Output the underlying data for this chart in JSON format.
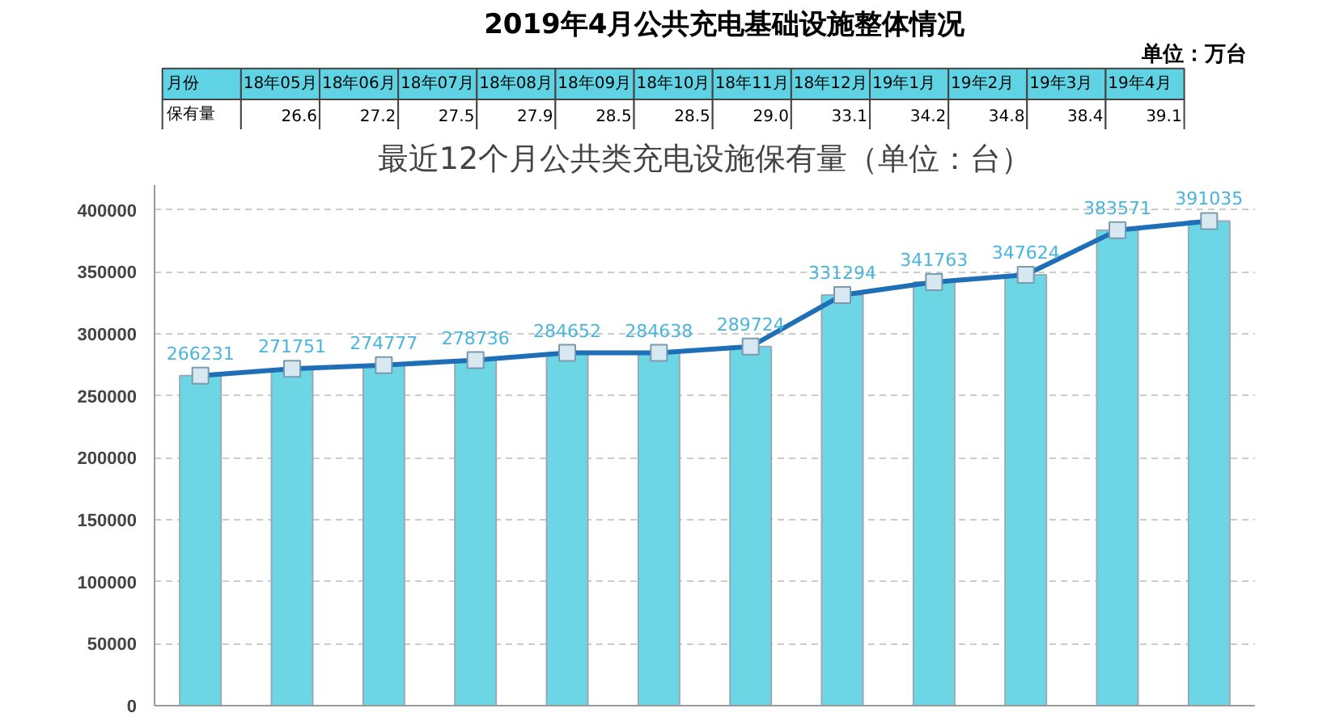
{
  "chart_data": [
    {
      "type": "other",
      "title": "2019年4月公共充电基础设施整体情况",
      "annotations": [
        "单位：万台"
      ],
      "y_categories": [
        "月份",
        "保有量"
      ],
      "categories": [
        "18年05月",
        "18年06月",
        "18年07月",
        "18年08月",
        "18年09月",
        "18年10月",
        "18年11月",
        "18年12月",
        "19年1月",
        "19年2月",
        "19年3月",
        "19年4月"
      ],
      "value_labels": [
        "26.6",
        "27.2",
        "27.5",
        "27.9",
        "28.5",
        "28.5",
        "29.0",
        "33.1",
        "34.2",
        "34.8",
        "38.4",
        "39.1"
      ]
    },
    {
      "type": "bar",
      "title": "最近12个月公共类充电设施保有量（单位：台）",
      "categories": [
        null,
        null,
        null,
        null,
        null,
        null,
        null,
        null,
        null,
        null,
        null,
        null
      ],
      "series": [
        {
          "type": "bar",
          "color": "#6dd6e4",
          "values": [
            266231,
            271751,
            274777,
            278736,
            284652,
            284638,
            289724,
            331294,
            341763,
            347624,
            383571,
            391035
          ]
        },
        {
          "type": "line",
          "color": "#1f6fb8",
          "values": [
            266231,
            271751,
            274777,
            278736,
            284652,
            284638,
            289724,
            331294,
            341763,
            347624,
            383571,
            391035
          ],
          "value_labels": [
            "266231",
            "271751",
            "274777",
            "278736",
            "284652",
            "284638",
            "289724",
            "331294",
            "341763",
            "347624",
            "383571",
            "391035"
          ]
        }
      ],
      "ylim": [
        0,
        420000
      ],
      "yticks": [
        0,
        50000,
        100000,
        150000,
        200000,
        250000,
        300000,
        350000,
        400000
      ],
      "grid": "y",
      "marker": "square"
    }
  ]
}
